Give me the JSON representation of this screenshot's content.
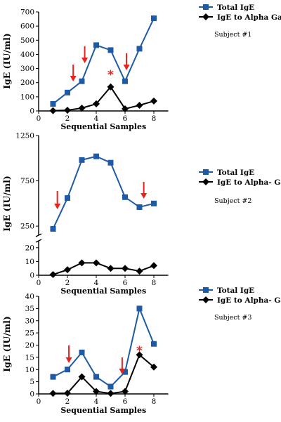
{
  "chart_data": [
    {
      "type": "line",
      "subject": "Subject #1",
      "x": [
        1,
        2,
        3,
        4,
        5,
        6,
        7,
        8
      ],
      "series": [
        {
          "name": "Total IgE",
          "values": [
            50,
            130,
            210,
            465,
            430,
            210,
            440,
            655
          ],
          "color": "#1f5aa6",
          "marker": "square"
        },
        {
          "name": "IgE to Alpha Gal",
          "values": [
            2,
            5,
            20,
            50,
            170,
            15,
            40,
            70
          ],
          "color": "#000000",
          "marker": "diamond"
        }
      ],
      "xlabel": "Sequential Samples",
      "ylabel": "IgE (IU/ml)",
      "xlim": [
        0,
        9
      ],
      "ylim": [
        0,
        700
      ],
      "xticks": [
        "0",
        "2",
        "4",
        "6",
        "8"
      ],
      "yticks": [
        "0",
        "100",
        "200",
        "300",
        "400",
        "500",
        "600",
        "700"
      ],
      "arrows_at": [
        2.4,
        3.2,
        6.1
      ],
      "asterisk_at": [
        5
      ],
      "grid": false,
      "legend": "right"
    },
    {
      "type": "line",
      "subject": "Subject #2",
      "x": [
        1,
        2,
        3,
        4,
        5,
        6,
        7,
        8
      ],
      "series": [
        {
          "name": "Total IgE",
          "values": [
            220,
            560,
            980,
            1020,
            950,
            570,
            460,
            500
          ],
          "color": "#1f5aa6",
          "marker": "square"
        },
        {
          "name": "IgE to Alpha- Gal",
          "values": [
            0.5,
            4,
            9,
            9,
            5,
            5,
            3,
            7
          ],
          "color": "#000000",
          "marker": "diamond"
        }
      ],
      "xlabel": "Sequential Samples",
      "ylabel": "IgE (IU/ml)",
      "xlim": [
        0,
        9
      ],
      "ylim_upper": [
        150,
        1250
      ],
      "ylim_lower": [
        0,
        25
      ],
      "xticks": [
        "0",
        "2",
        "4",
        "6",
        "8"
      ],
      "yticks_upper": [
        "250",
        "750",
        "1250"
      ],
      "yticks_lower": [
        "0",
        "10",
        "20"
      ],
      "arrows_at": [
        1.3,
        7.3
      ],
      "grid": false,
      "legend": "right"
    },
    {
      "type": "line",
      "subject": "Subject #3",
      "x": [
        1,
        2,
        3,
        4,
        5,
        6,
        7,
        8
      ],
      "series": [
        {
          "name": "Total IgE",
          "values": [
            7,
            10,
            17,
            7,
            3,
            9,
            35,
            20.5
          ],
          "color": "#1f5aa6",
          "marker": "square"
        },
        {
          "name": "IgE to Alpha- Gal",
          "values": [
            0.2,
            0.3,
            7,
            1,
            0.2,
            1,
            16,
            11
          ],
          "color": "#000000",
          "marker": "diamond"
        }
      ],
      "xlabel": "Sequential Samples",
      "ylabel": "IgE (IU/ml)",
      "xlim": [
        0,
        9
      ],
      "ylim": [
        0,
        40
      ],
      "xticks": [
        "0",
        "2",
        "4",
        "6",
        "8"
      ],
      "yticks": [
        "0",
        "5",
        "10",
        "15",
        "20",
        "25",
        "30",
        "35",
        "40"
      ],
      "arrows_at": [
        2.1,
        5.8
      ],
      "asterisk_at": [
        7
      ],
      "grid": false,
      "legend": "right"
    }
  ],
  "colors": {
    "total": "#1f5aa6",
    "alpha_gal": "#000000",
    "marker_annotation": "#e8221d"
  }
}
